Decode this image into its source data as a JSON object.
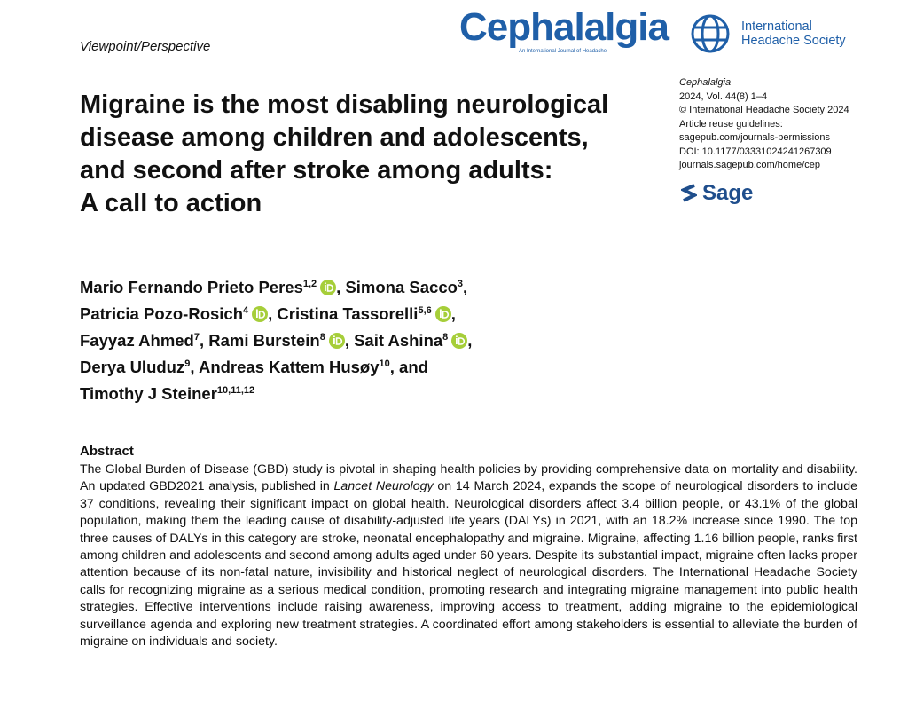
{
  "header": {
    "section": "Viewpoint/Perspective",
    "journal_logo": "Cephalalgia",
    "journal_tagline": "An International Journal of Headache",
    "society_lines": [
      "International",
      "Headache Society"
    ]
  },
  "info": {
    "journal": "Cephalalgia",
    "citation": "2024, Vol. 44(8) 1–4",
    "copyright": "© International Headache Society 2024",
    "reuse": "Article reuse guidelines:",
    "reuse_url": "sagepub.com/journals-permissions",
    "doi": "DOI: 10.1177/03331024241267309",
    "home": "journals.sagepub.com/home/cep",
    "publisher": "Sage"
  },
  "title_lines": [
    "Migraine is the most disabling neurological",
    "disease among children and adolescents,",
    "and second after stroke among adults:",
    "A call to action"
  ],
  "author_lines": [
    [
      {
        "name": "Mario Fernando Prieto Peres",
        "sup": "1,2",
        "orcid": true,
        "after": ","
      },
      {
        "name": "Simona Sacco",
        "sup": "3",
        "after": ","
      }
    ],
    [
      {
        "name": "Patricia Pozo-Rosich",
        "sup": "4",
        "orcid": true,
        "after": ","
      },
      {
        "name": "Cristina Tassorelli",
        "sup": "5,6",
        "orcid": true,
        "after": ","
      }
    ],
    [
      {
        "name": "Fayyaz Ahmed",
        "sup": "7",
        "after": ","
      },
      {
        "name": "Rami Burstein",
        "sup": "8",
        "orcid": true,
        "after": ","
      },
      {
        "name": "Sait Ashina",
        "sup": "8",
        "orcid": true,
        "after": ","
      }
    ],
    [
      {
        "name": "Derya Uluduz",
        "sup": "9",
        "after": ","
      },
      {
        "name": "Andreas Kattem Husøy",
        "sup": "10",
        "after": ", and"
      }
    ],
    [
      {
        "name": "Timothy J Steiner",
        "sup": "10,11,12"
      }
    ]
  ],
  "abstract": {
    "heading": "Abstract",
    "parts": [
      {
        "text": "The Global Burden of Disease (GBD) study is pivotal in shaping health policies by providing comprehensive data on mortality and disability. An updated GBD2021 analysis, published in "
      },
      {
        "text": "Lancet Neurology",
        "italic": true
      },
      {
        "text": " on 14 March 2024, expands the scope of neurological disorders to include 37 conditions, revealing their significant impact on global health. Neurological disorders affect 3.4 billion people, or 43.1% of the global population, making them the leading cause of disability-adjusted life years (DALYs) in 2021, with an 18.2% increase since 1990. The top three causes of DALYs in this category are stroke, neonatal encephalopathy and migraine. Migraine, affecting 1.16 billion people, ranks first among children and adolescents and second among adults aged under 60 years. Despite its substantial impact, migraine often lacks proper attention because of its non-fatal nature, invisibility and historical neglect of neurological disorders. The International Headache Society calls for recognizing migraine as a serious medical condition, promoting research and integrating migraine management into public health strategies. Effective interventions include raising awareness, improving access to treatment, adding migraine to the epidemiological surveillance agenda and exploring new treatment strategies. A coordinated effort among stakeholders is essential to alleviate the burden of migraine on individuals and society."
      }
    ]
  }
}
